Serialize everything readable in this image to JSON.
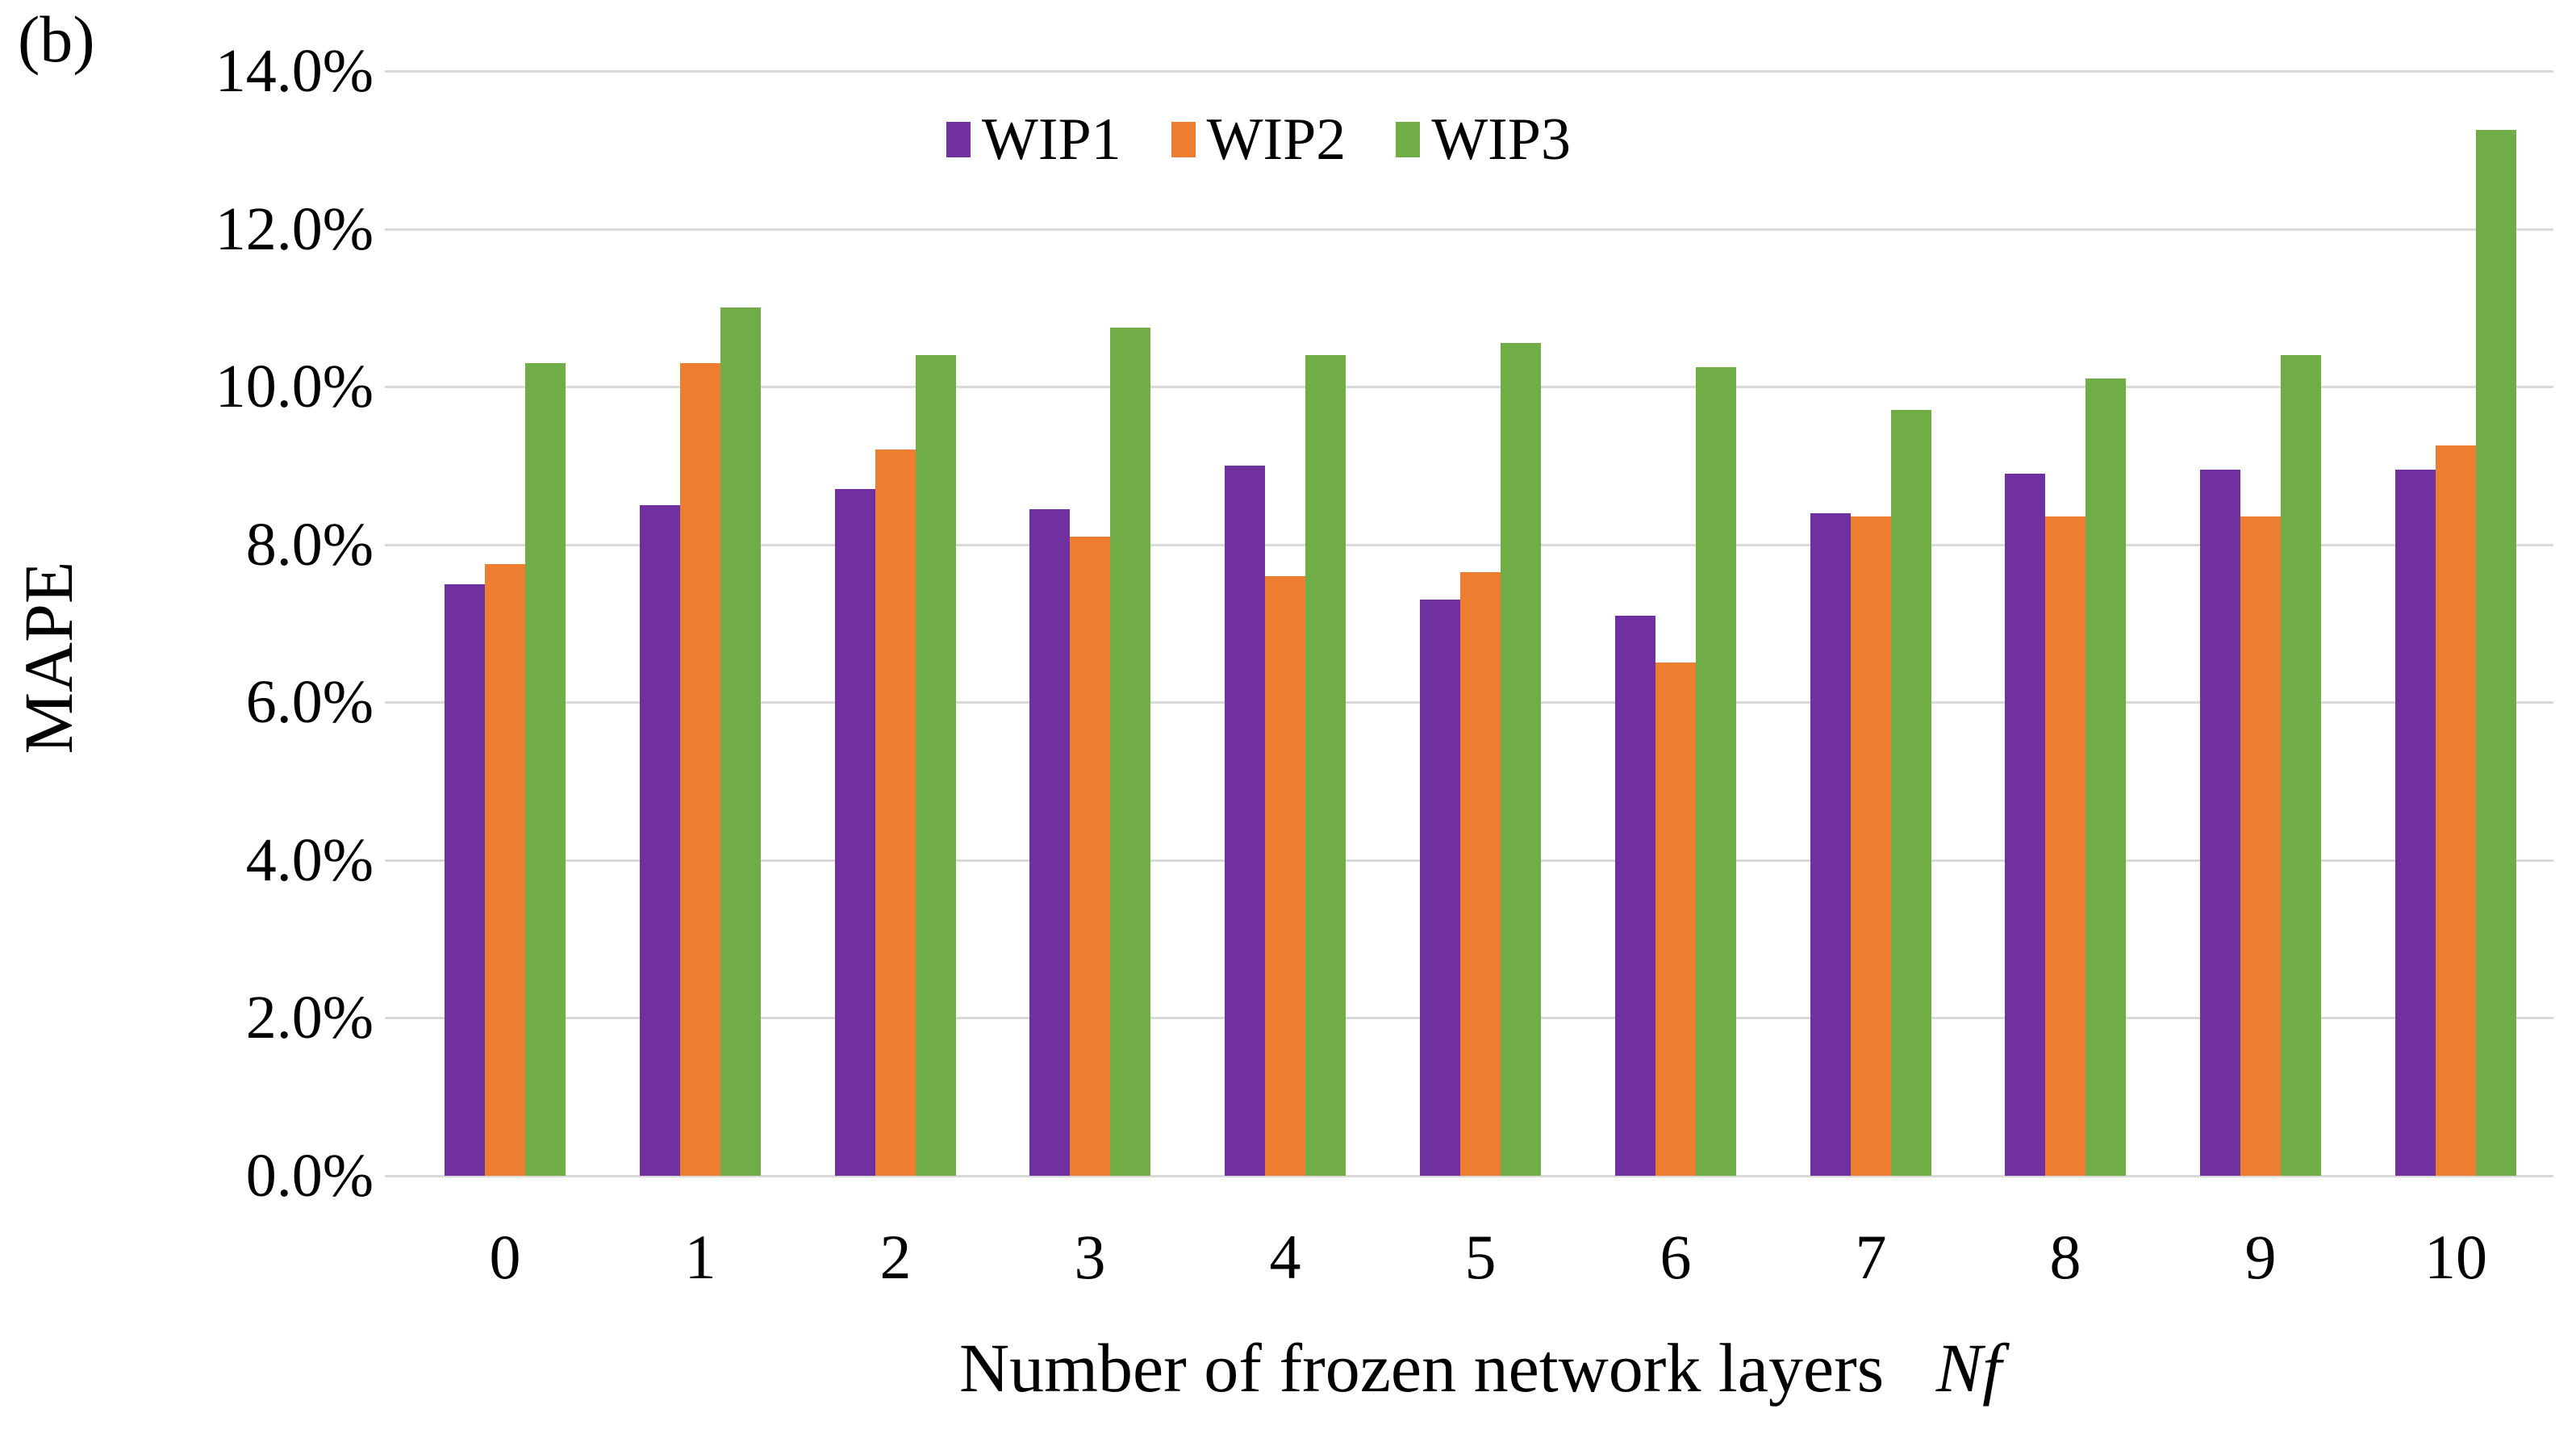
{
  "figure": {
    "panel_label": "(b)"
  },
  "chart_data": {
    "type": "bar",
    "title": "",
    "xlabel": "Number of frozen network layers",
    "xlabel_italic_suffix": "Nf",
    "ylabel": "MAPE",
    "categories": [
      "0",
      "1",
      "2",
      "3",
      "4",
      "5",
      "6",
      "7",
      "8",
      "9",
      "10"
    ],
    "series": [
      {
        "name": "WIP1",
        "color": "#7030A0",
        "values": [
          7.5,
          8.5,
          8.7,
          8.45,
          9.0,
          7.3,
          7.1,
          8.4,
          8.9,
          8.95,
          8.95
        ]
      },
      {
        "name": "WIP2",
        "color": "#ED7D31",
        "values": [
          7.75,
          10.3,
          9.2,
          8.1,
          7.6,
          7.65,
          6.5,
          8.35,
          8.35,
          8.35,
          9.25
        ]
      },
      {
        "name": "WIP3",
        "color": "#70AD47",
        "values": [
          10.3,
          11.0,
          10.4,
          10.75,
          10.4,
          10.55,
          10.25,
          9.7,
          10.1,
          10.4,
          13.25
        ]
      }
    ],
    "ylim": [
      0,
      14
    ],
    "y_tick_step": 2,
    "y_tick_labels": [
      "0.0%",
      "2.0%",
      "4.0%",
      "6.0%",
      "8.0%",
      "10.0%",
      "12.0%",
      "14.0%"
    ],
    "unit": "percent",
    "grid": "horizontal",
    "gridline_color": "#D9D9D9",
    "legend_position": "top-inside-left-of-center",
    "legend_entries": [
      "WIP1",
      "WIP2",
      "WIP3"
    ]
  }
}
